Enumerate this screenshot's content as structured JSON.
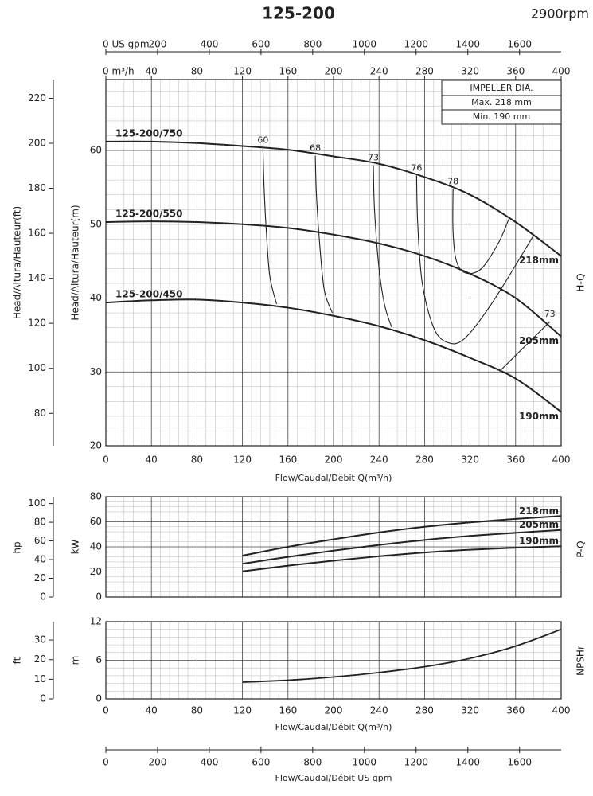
{
  "title": "125-200",
  "speed": "2900rpm",
  "chart_data": [
    {
      "type": "line",
      "side_label": "H-Q",
      "xlabel": "Flow/Caudal/Débit Q(m³/h)",
      "ylabel": "Head/Altura/Hauteur(m)",
      "y2label": "Head/Altura/Hauteur(ft)",
      "xlim": [
        0,
        400
      ],
      "xticks": [
        0,
        40,
        80,
        120,
        160,
        200,
        240,
        280,
        320,
        360,
        400
      ],
      "x_top_ticks": [
        {
          "value": 0,
          "label": "0 m³/h"
        },
        40,
        80,
        120,
        160,
        200,
        240,
        280,
        320,
        360,
        400
      ],
      "x2lim": [
        0,
        1761
      ],
      "x2ticks": [
        {
          "value": 0,
          "label": "0 US gpm"
        },
        200,
        400,
        600,
        800,
        1000,
        1200,
        1400,
        1600
      ],
      "ylim": [
        20,
        69.6
      ],
      "yticks": [
        20,
        30,
        40,
        50,
        60
      ],
      "y2lim": [
        65.6,
        228.3
      ],
      "y2ticks": [
        80,
        100,
        120,
        140,
        160,
        180,
        200,
        220
      ],
      "grid": true,
      "color": "#222222",
      "impeller": {
        "title": "IMPELLER DIA.",
        "max": "Max. 218 mm",
        "min": "Min. 190 mm"
      },
      "x": [
        0,
        40,
        80,
        120,
        160,
        200,
        240,
        280,
        320,
        360,
        400
      ],
      "series": [
        {
          "name": "218mm",
          "model": "125-200/750",
          "values": [
            61.2,
            61.2,
            61.0,
            60.6,
            60.1,
            59.2,
            58.2,
            56.4,
            54.0,
            50.3,
            45.7
          ]
        },
        {
          "name": "205mm",
          "model": "125-200/550",
          "values": [
            50.3,
            50.4,
            50.3,
            50.0,
            49.5,
            48.6,
            47.4,
            45.7,
            43.3,
            40.0,
            34.8
          ]
        },
        {
          "name": "190mm",
          "model": "125-200/450",
          "values": [
            39.4,
            39.7,
            39.8,
            39.4,
            38.7,
            37.6,
            36.2,
            34.3,
            31.9,
            29.1,
            24.6
          ]
        }
      ],
      "efficiency_curves": [
        {
          "name": "60",
          "x": [
            138,
            139,
            141,
            144,
            150
          ],
          "values": [
            60.4,
            55,
            49,
            43,
            39.2
          ]
        },
        {
          "name": "68",
          "x": [
            184,
            185,
            188,
            192,
            199
          ],
          "values": [
            59.3,
            54,
            47,
            41,
            38.0
          ]
        },
        {
          "name": "73",
          "x": [
            235,
            236,
            240,
            245,
            251
          ],
          "values": [
            58.0,
            52,
            44,
            39,
            36.1
          ]
        },
        {
          "name": "76",
          "x": [
            273,
            274,
            278,
            288,
            300,
            315,
            340,
            375
          ],
          "values": [
            56.6,
            50,
            42,
            36,
            34.0,
            34.5,
            39.5,
            48.3
          ]
        },
        {
          "name": "78",
          "x": [
            305,
            305,
            308,
            316,
            330,
            345,
            354
          ],
          "values": [
            54.8,
            49,
            45,
            43.4,
            44,
            47.5,
            50.7
          ]
        },
        {
          "name": "73",
          "x": [
            390,
            365,
            346
          ],
          "values": [
            36.8,
            33,
            30.1
          ]
        }
      ]
    },
    {
      "type": "line",
      "side_label": "P-Q",
      "ylabel": "kW",
      "y2label": "hp",
      "xlim": [
        0,
        400
      ],
      "xticks": [
        0,
        40,
        80,
        120,
        160,
        200,
        240,
        280,
        320,
        360,
        400
      ],
      "ylim": [
        0,
        80
      ],
      "yticks": [
        0,
        20,
        40,
        60,
        80
      ],
      "y2lim": [
        0,
        107.3
      ],
      "y2ticks": [
        0,
        20,
        40,
        60,
        80,
        100
      ],
      "grid": true,
      "color": "#222222",
      "x": [
        120,
        160,
        200,
        240,
        280,
        320,
        360,
        400
      ],
      "series": [
        {
          "name": "218mm",
          "values": [
            33,
            40,
            46,
            51.5,
            56,
            59.5,
            62.3,
            64.6
          ]
        },
        {
          "name": "205mm",
          "values": [
            26.5,
            32,
            37,
            41.5,
            45.5,
            48.7,
            51.2,
            53.5
          ]
        },
        {
          "name": "190mm",
          "values": [
            20.5,
            25,
            29,
            32.5,
            35.5,
            37.7,
            39.3,
            40.5
          ]
        }
      ]
    },
    {
      "type": "line",
      "side_label": "NPSHr",
      "xlabel": "Flow/Caudal/Débit Q(m³/h)",
      "ylabel": "m",
      "y2label": "ft",
      "xlim": [
        0,
        400
      ],
      "xticks": [
        0,
        40,
        80,
        120,
        160,
        200,
        240,
        280,
        320,
        360,
        400
      ],
      "x2lim": [
        0,
        1761
      ],
      "x2ticks": [
        0,
        200,
        400,
        600,
        800,
        1000,
        1200,
        1400,
        1600
      ],
      "x2label": "Flow/Caudal/Débit US gpm",
      "ylim": [
        0,
        12
      ],
      "yticks": [
        0,
        6,
        12
      ],
      "y2lim": [
        0,
        39.37
      ],
      "y2ticks": [
        0,
        10,
        20,
        30
      ],
      "grid": true,
      "color": "#222222",
      "x": [
        120,
        160,
        200,
        240,
        280,
        320,
        360,
        400
      ],
      "values": [
        2.6,
        2.9,
        3.4,
        4.1,
        5.0,
        6.3,
        8.2,
        10.8
      ]
    }
  ]
}
